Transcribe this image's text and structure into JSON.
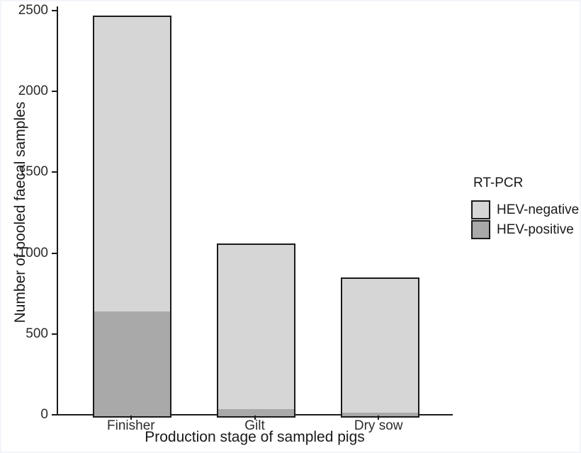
{
  "figure": {
    "background": "#ffffff",
    "axis_color": "#1a1a1a",
    "tick_label_color": "#2b2b2b"
  },
  "chart_data": {
    "type": "bar",
    "stacked": true,
    "title": "",
    "xlabel": "Production stage of sampled pigs",
    "ylabel": "Number of pooled faecal samples",
    "categories": [
      "Finisher",
      "Gilt",
      "Dry sow"
    ],
    "series": [
      {
        "name": "HEV-negative",
        "color": "#d6d6d6",
        "values": [
          1820,
          1015,
          830
        ]
      },
      {
        "name": "HEV-positive",
        "color": "#a9a9a9",
        "values": [
          650,
          45,
          20
        ]
      }
    ],
    "totals": [
      2470,
      1060,
      850
    ],
    "ylim": [
      0,
      2500
    ],
    "yticks": [
      0,
      500,
      1000,
      1500,
      2000,
      2500
    ],
    "grid": false,
    "bar_border_color": "#1a1a1a",
    "legend": {
      "title": "RT-PCR",
      "position": "right",
      "items": [
        {
          "label": "HEV-negative",
          "color": "#d6d6d6"
        },
        {
          "label": "HEV-positive",
          "color": "#a9a9a9"
        }
      ]
    }
  }
}
